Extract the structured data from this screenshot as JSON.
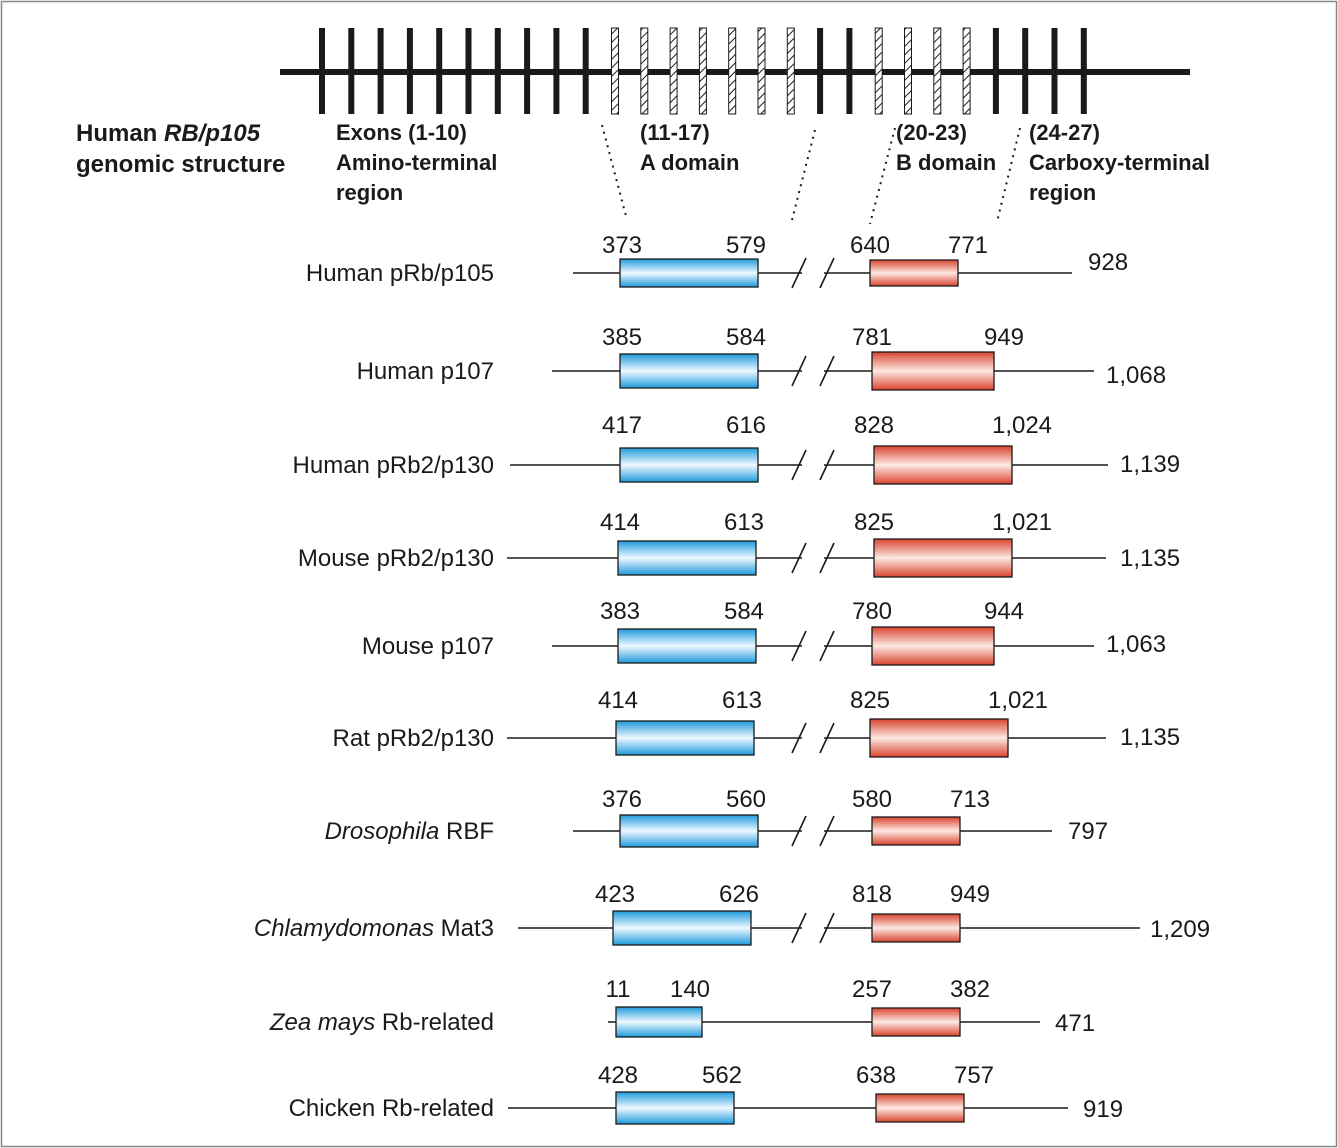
{
  "genomic": {
    "title_pre": "Human ",
    "title_em": "RB/p105",
    "title_line2": "genomic structure",
    "regions": [
      {
        "line1": "Exons (1-10)",
        "line2": "Amino-terminal",
        "line3": "region"
      },
      {
        "line1": "(11-17)",
        "line2": "A domain",
        "line3": ""
      },
      {
        "line1": "(20-23)",
        "line2": "B domain",
        "line3": ""
      },
      {
        "line1": "(24-27)",
        "line2": "Carboxy-terminal",
        "line3": "region"
      }
    ],
    "exon_pattern": [
      "solid",
      "solid",
      "solid",
      "solid",
      "solid",
      "solid",
      "solid",
      "solid",
      "solid",
      "solid",
      "hatched",
      "hatched",
      "hatched",
      "hatched",
      "hatched",
      "hatched",
      "hatched",
      "solid",
      "solid",
      "hatched",
      "hatched",
      "hatched",
      "hatched",
      "solid",
      "solid",
      "solid",
      "solid"
    ]
  },
  "colors": {
    "a_domain": "#2aa7e0",
    "b_domain": "#e0483a",
    "line": "#1a1a1a"
  },
  "proteins": [
    {
      "name_em": "",
      "name": "Human pRb/p105",
      "a": [
        "373",
        "579"
      ],
      "b": [
        "640",
        "771"
      ],
      "total": "928",
      "break": true
    },
    {
      "name_em": "",
      "name": "Human p107",
      "a": [
        "385",
        "584"
      ],
      "b": [
        "781",
        "949"
      ],
      "total": "1,068",
      "break": true
    },
    {
      "name_em": "",
      "name": "Human pRb2/p130",
      "a": [
        "417",
        "616"
      ],
      "b": [
        "828",
        "1,024"
      ],
      "total": "1,139",
      "break": true
    },
    {
      "name_em": "",
      "name": "Mouse pRb2/p130",
      "a": [
        "414",
        "613"
      ],
      "b": [
        "825",
        "1,021"
      ],
      "total": "1,135",
      "break": true
    },
    {
      "name_em": "",
      "name": "Mouse p107",
      "a": [
        "383",
        "584"
      ],
      "b": [
        "780",
        "944"
      ],
      "total": "1,063",
      "break": true
    },
    {
      "name_em": "",
      "name": "Rat pRb2/p130",
      "a": [
        "414",
        "613"
      ],
      "b": [
        "825",
        "1,021"
      ],
      "total": "1,135",
      "break": true
    },
    {
      "name_em": "Drosophila",
      "name": " RBF",
      "a": [
        "376",
        "560"
      ],
      "b": [
        "580",
        "713"
      ],
      "total": "797",
      "break": true
    },
    {
      "name_em": "Chlamydomonas",
      "name": " Mat3",
      "a": [
        "423",
        "626"
      ],
      "b": [
        "818",
        "949"
      ],
      "total": "1,209",
      "break": true
    },
    {
      "name_em": "Zea mays",
      "name": " Rb-related",
      "a": [
        "11",
        "140"
      ],
      "b": [
        "257",
        "382"
      ],
      "total": "471",
      "break": false
    },
    {
      "name_em": "",
      "name": "Chicken Rb-related",
      "a": [
        "428",
        "562"
      ],
      "b": [
        "638",
        "757"
      ],
      "total": "919",
      "break": false
    }
  ]
}
